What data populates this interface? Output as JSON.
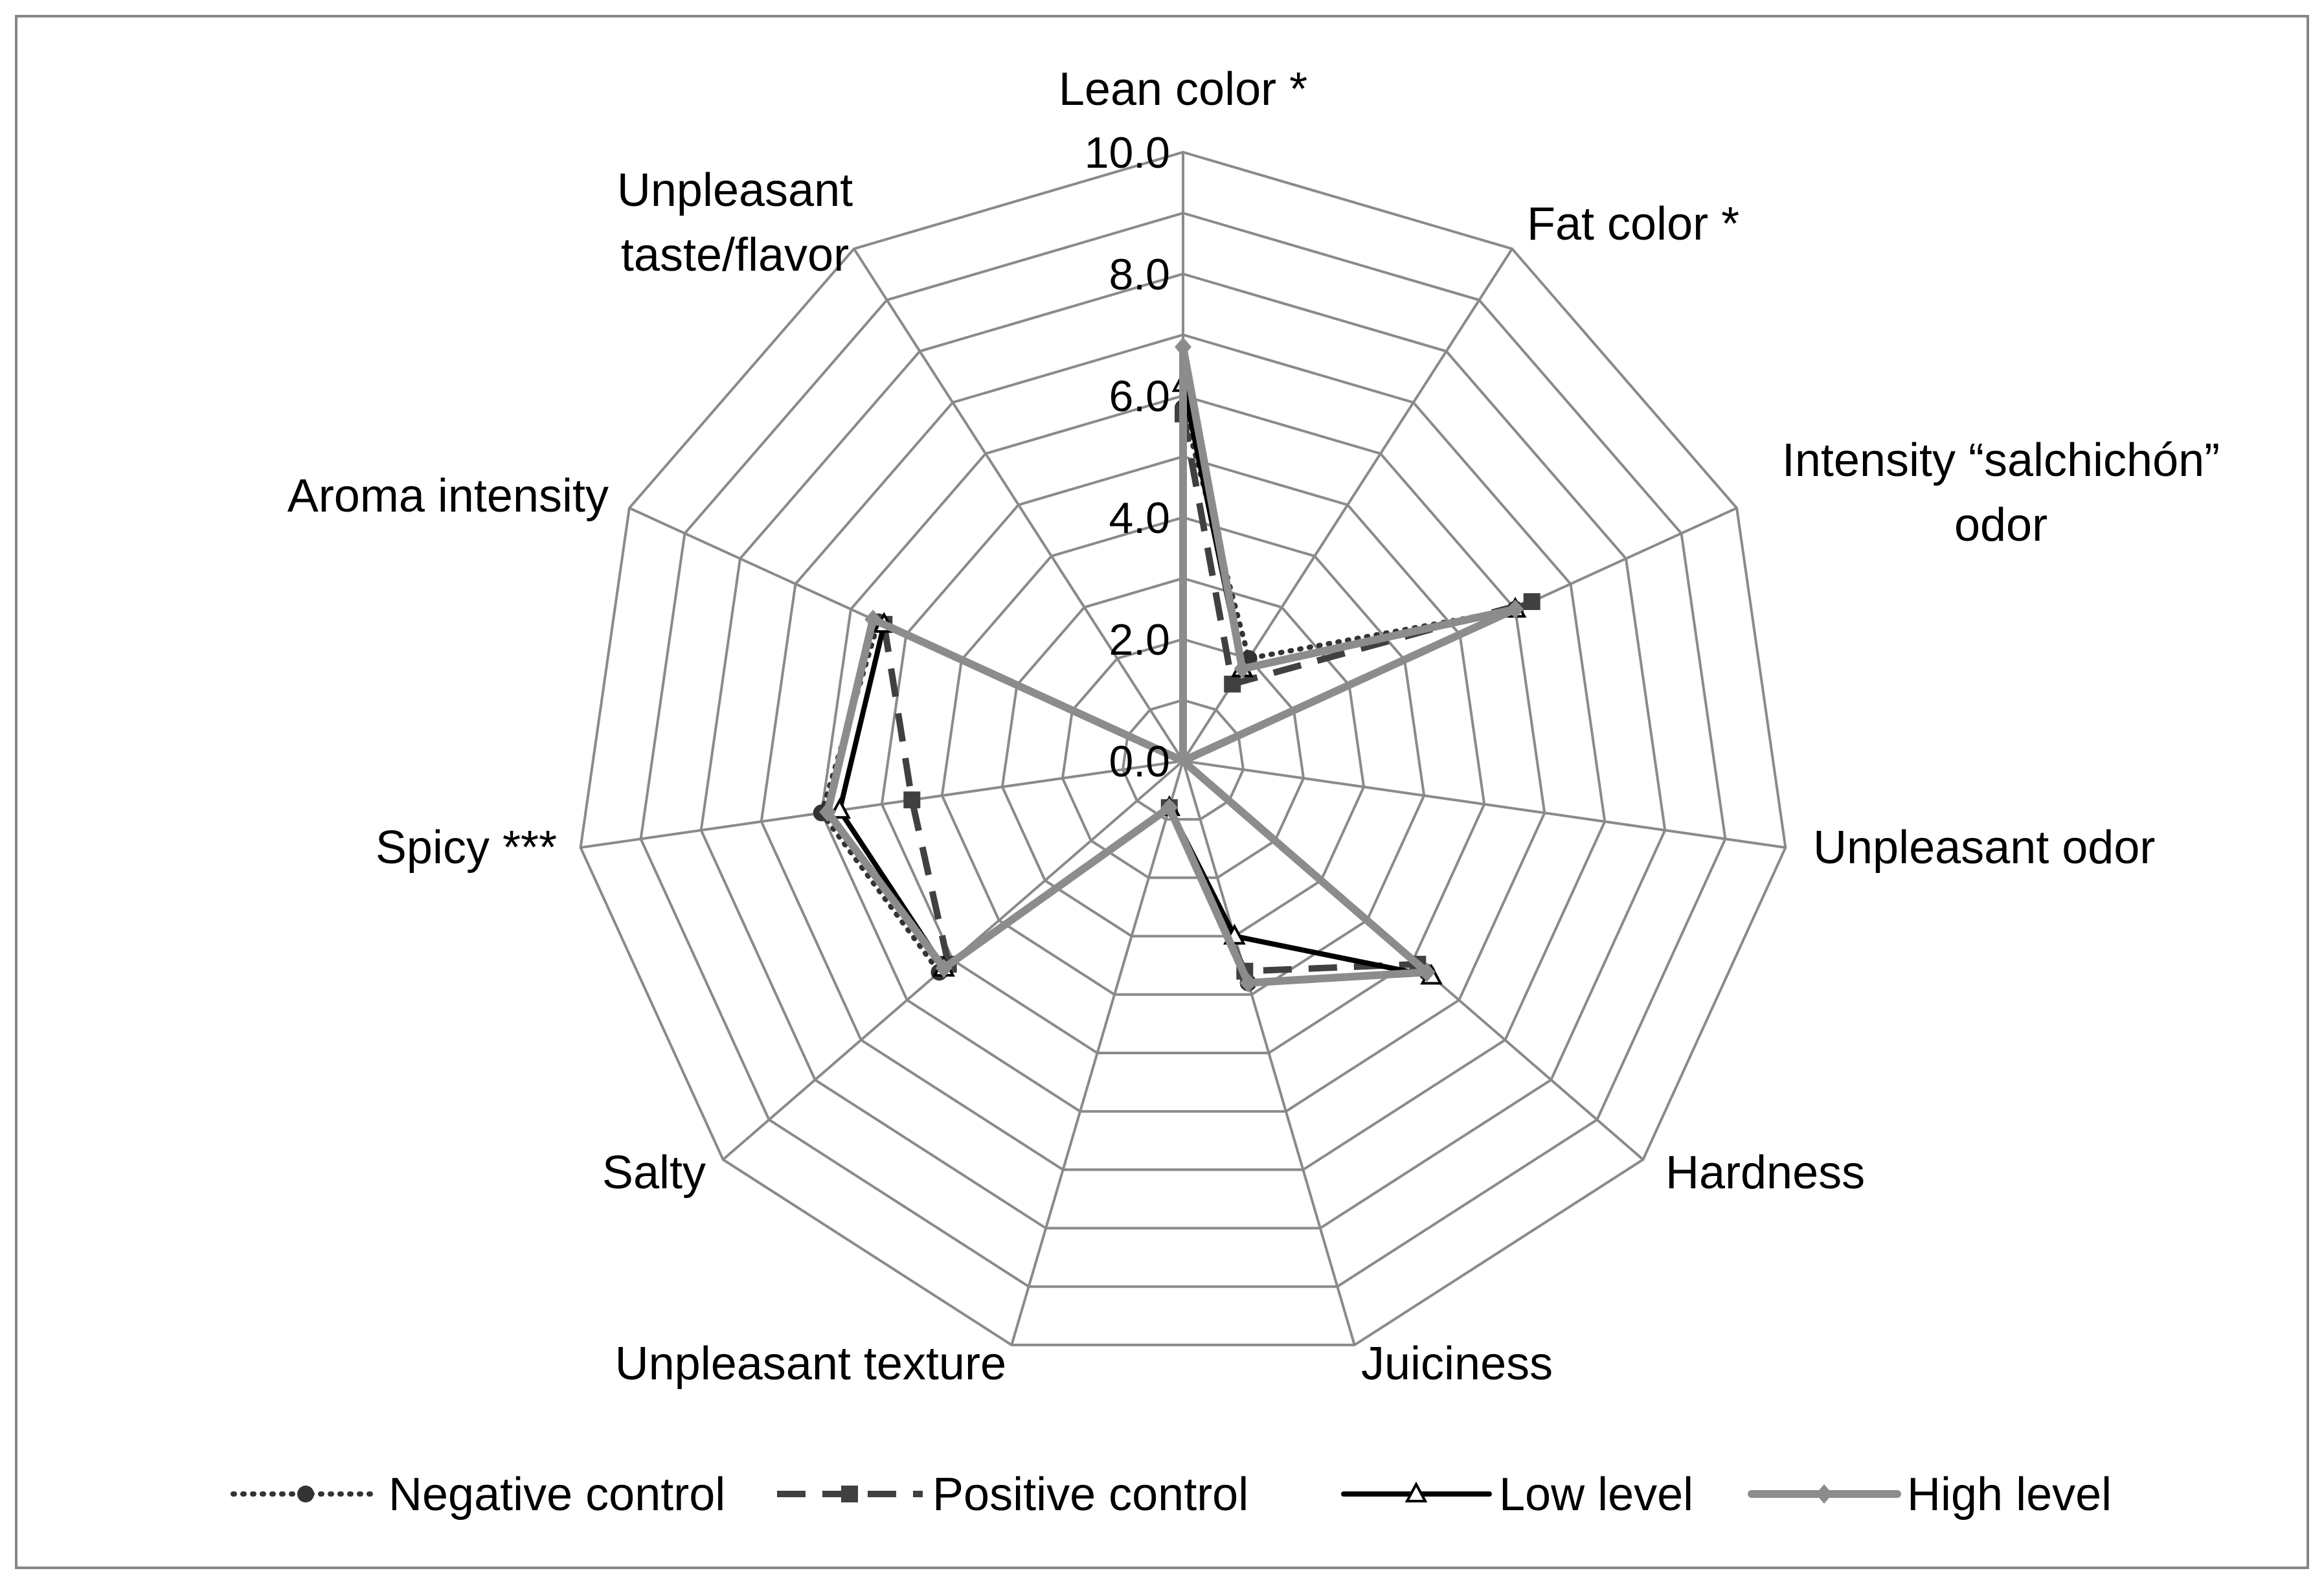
{
  "chart_data": {
    "type": "radar",
    "title": "",
    "axes": [
      "Lean color *",
      "Fat color *",
      "Intensity “salchichón” odor",
      "Unpleasant odor",
      "Hardness",
      "Juiciness",
      "Unpleasant texture",
      "Salty",
      "Spicy ***",
      "Aroma intensity",
      "Unpleasant taste/flavor"
    ],
    "axis_label_lines": [
      [
        "Lean color *"
      ],
      [
        "Fat color *"
      ],
      [
        "Intensity “salchichón”",
        "odor"
      ],
      [
        "Unpleasant odor"
      ],
      [
        "Hardness"
      ],
      [
        "Juiciness"
      ],
      [
        "Unpleasant texture"
      ],
      [
        "Salty"
      ],
      [
        "Spicy ***"
      ],
      [
        "Aroma intensity"
      ],
      [
        "Unpleasant",
        "taste/flavor"
      ]
    ],
    "radial_range": [
      0,
      10
    ],
    "radial_ticks": [
      "0.0",
      "2.0",
      "4.0",
      "6.0",
      "8.0",
      "10.0"
    ],
    "radial_tick_values": [
      0,
      2,
      4,
      6,
      8,
      10
    ],
    "grid_levels": [
      1,
      2,
      3,
      4,
      5,
      6,
      7,
      8,
      9,
      10
    ],
    "legend_position": "bottom",
    "series": [
      {
        "name": "Negative control",
        "values": [
          5.8,
          2.0,
          6.0,
          0.0,
          5.3,
          3.8,
          0.8,
          5.3,
          6.0,
          5.5,
          0.0
        ],
        "color": "#333333",
        "line_style": "dotted",
        "marker": "circle"
      },
      {
        "name": "Positive control",
        "values": [
          5.7,
          1.5,
          6.3,
          0.0,
          5.1,
          3.6,
          0.8,
          5.1,
          4.5,
          5.4,
          0.0
        ],
        "color": "#404040",
        "line_style": "dashed",
        "marker": "square"
      },
      {
        "name": "Low level",
        "values": [
          6.2,
          1.8,
          6.0,
          0.0,
          5.4,
          3.0,
          0.8,
          5.2,
          5.7,
          5.4,
          0.0
        ],
        "color": "#000000",
        "line_style": "solid",
        "marker": "triangle"
      },
      {
        "name": "High level",
        "values": [
          6.8,
          1.8,
          6.0,
          0.0,
          5.3,
          3.8,
          0.8,
          5.2,
          5.9,
          5.6,
          0.0
        ],
        "color": "#8c8c8c",
        "line_style": "solid-thick",
        "marker": "diamond"
      }
    ]
  }
}
